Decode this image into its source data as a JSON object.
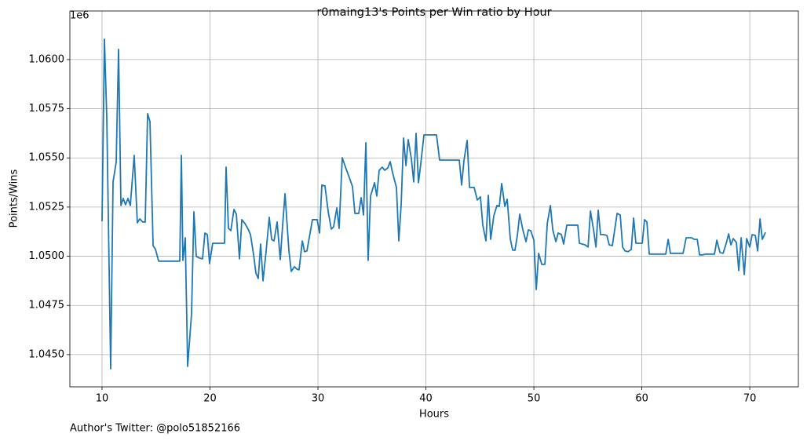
{
  "chart_data": {
    "type": "line",
    "title": "r0maing13's Points per Win ratio by Hour",
    "x_label": "Hours",
    "y_label": "Points/Wins",
    "y_offset_label": "1e6",
    "footer": "Author's Twitter: @polo51852166",
    "color": "#1f77b4",
    "grid": true,
    "xlim": [
      7.02,
      74.5
    ],
    "ylim": [
      1.04336,
      1.06247
    ],
    "xticks": [
      10,
      20,
      30,
      40,
      50,
      60,
      70
    ],
    "yticks": [
      {
        "value": 1.045,
        "label": "1.0450"
      },
      {
        "value": 1.0475,
        "label": "1.0475"
      },
      {
        "value": 1.05,
        "label": "1.0500"
      },
      {
        "value": 1.0525,
        "label": "1.0525"
      },
      {
        "value": 1.055,
        "label": "1.0550"
      },
      {
        "value": 1.0575,
        "label": "1.0575"
      },
      {
        "value": 1.06,
        "label": "1.0600"
      }
    ],
    "x": [
      10.0,
      10.22,
      10.44,
      10.8,
      11.02,
      11.31,
      11.53,
      11.75,
      11.96,
      12.18,
      12.4,
      12.62,
      12.98,
      13.27,
      13.49,
      13.78,
      14.0,
      14.22,
      14.44,
      14.73,
      14.95,
      15.24,
      15.82,
      17.2,
      17.35,
      17.49,
      17.71,
      17.93,
      18.29,
      18.51,
      18.73,
      19.02,
      19.31,
      19.53,
      19.75,
      19.96,
      20.25,
      21.35,
      21.49,
      21.71,
      21.93,
      22.22,
      22.44,
      22.73,
      22.95,
      23.24,
      23.53,
      23.75,
      24.04,
      24.25,
      24.47,
      24.69,
      24.91,
      25.2,
      25.49,
      25.71,
      25.93,
      26.22,
      26.51,
      26.73,
      26.95,
      27.31,
      27.53,
      27.82,
      28.04,
      28.25,
      28.55,
      28.76,
      28.98,
      29.27,
      29.49,
      29.93,
      30.15,
      30.36,
      30.65,
      30.95,
      31.24,
      31.45,
      31.75,
      31.96,
      32.25,
      32.55,
      32.84,
      33.2,
      33.42,
      33.78,
      34.0,
      34.22,
      34.44,
      34.65,
      34.87,
      35.24,
      35.45,
      35.67,
      35.96,
      36.18,
      36.47,
      36.69,
      36.91,
      37.27,
      37.49,
      37.71,
      37.93,
      38.15,
      38.36,
      38.65,
      38.87,
      39.09,
      39.31,
      39.53,
      39.82,
      40.98,
      41.27,
      43.09,
      43.31,
      43.53,
      43.82,
      44.04,
      44.47,
      44.76,
      45.05,
      45.27,
      45.56,
      45.78,
      46.0,
      46.29,
      46.58,
      46.8,
      47.02,
      47.31,
      47.53,
      47.82,
      48.04,
      48.25,
      48.47,
      48.69,
      48.98,
      49.27,
      49.49,
      49.71,
      50.0,
      50.22,
      50.44,
      50.73,
      51.02,
      51.24,
      51.53,
      51.75,
      52.04,
      52.25,
      52.55,
      52.76,
      53.05,
      54.07,
      54.22,
      54.73,
      55.02,
      55.24,
      55.53,
      55.75,
      55.96,
      56.18,
      56.47,
      56.76,
      56.98,
      57.27,
      57.71,
      58.0,
      58.22,
      58.44,
      58.73,
      59.02,
      59.24,
      59.45,
      60.04,
      60.25,
      60.47,
      60.69,
      61.2,
      62.22,
      62.44,
      62.65,
      63.82,
      64.11,
      64.62,
      64.84,
      65.13,
      65.35,
      65.64,
      65.93,
      66.73,
      66.95,
      67.24,
      67.53,
      67.82,
      68.04,
      68.25,
      68.47,
      68.76,
      68.98,
      69.2,
      69.49,
      69.71,
      70.0,
      70.22,
      70.51,
      70.73,
      70.95,
      71.16,
      71.45
    ],
    "values": [
      1.05178,
      1.06104,
      1.05705,
      1.04428,
      1.05378,
      1.05477,
      1.06052,
      1.05258,
      1.05294,
      1.05262,
      1.05294,
      1.05258,
      1.05513,
      1.0517,
      1.0519,
      1.05174,
      1.05174,
      1.05725,
      1.05685,
      1.05054,
      1.05035,
      1.04975,
      1.04975,
      1.04975,
      1.05513,
      1.04979,
      1.05094,
      1.0444,
      1.04707,
      1.05226,
      1.04999,
      1.04991,
      1.04987,
      1.05118,
      1.0511,
      1.04963,
      1.05066,
      1.05066,
      1.05453,
      1.05142,
      1.0513,
      1.05238,
      1.05214,
      1.04987,
      1.05186,
      1.05166,
      1.05138,
      1.0511,
      1.05007,
      1.04915,
      1.04887,
      1.05062,
      1.04875,
      1.05027,
      1.05198,
      1.05086,
      1.05078,
      1.05174,
      1.04983,
      1.05158,
      1.05318,
      1.05027,
      1.04923,
      1.04947,
      1.04935,
      1.04931,
      1.05078,
      1.05023,
      1.05027,
      1.05118,
      1.05186,
      1.05186,
      1.05118,
      1.05362,
      1.05358,
      1.05226,
      1.05138,
      1.0515,
      1.05246,
      1.05142,
      1.05501,
      1.05453,
      1.0541,
      1.05354,
      1.05218,
      1.05218,
      1.05298,
      1.0521,
      1.05577,
      1.04979,
      1.05306,
      1.05374,
      1.05306,
      1.05437,
      1.05453,
      1.05437,
      1.05449,
      1.05481,
      1.05425,
      1.0535,
      1.05078,
      1.05266,
      1.05601,
      1.05461,
      1.05593,
      1.05497,
      1.05378,
      1.05625,
      1.05374,
      1.05473,
      1.05617,
      1.05617,
      1.05489,
      1.05489,
      1.05362,
      1.05489,
      1.05589,
      1.0535,
      1.0535,
      1.05286,
      1.05302,
      1.05158,
      1.05078,
      1.0531,
      1.05086,
      1.05206,
      1.05258,
      1.05254,
      1.0537,
      1.05254,
      1.0529,
      1.05086,
      1.05031,
      1.05031,
      1.05106,
      1.05214,
      1.05134,
      1.05074,
      1.05134,
      1.0513,
      1.05082,
      1.04831,
      1.05015,
      1.04959,
      1.04959,
      1.05166,
      1.05258,
      1.05134,
      1.05074,
      1.05118,
      1.0511,
      1.05062,
      1.05158,
      1.05158,
      1.05066,
      1.05058,
      1.05047,
      1.0523,
      1.05134,
      1.05047,
      1.05234,
      1.0511,
      1.0511,
      1.05106,
      1.05058,
      1.05054,
      1.05218,
      1.0521,
      1.05047,
      1.05027,
      1.05023,
      1.05035,
      1.05194,
      1.05066,
      1.05066,
      1.05186,
      1.05174,
      1.05011,
      1.05011,
      1.05011,
      1.05086,
      1.05015,
      1.05015,
      1.05094,
      1.05094,
      1.05086,
      1.05086,
      1.05007,
      1.05007,
      1.05011,
      1.05011,
      1.05082,
      1.05019,
      1.05015,
      1.05066,
      1.05114,
      1.05058,
      1.0509,
      1.0507,
      1.04927,
      1.05094,
      1.04907,
      1.0509,
      1.05047,
      1.0511,
      1.05106,
      1.05027,
      1.0519,
      1.05086,
      1.05122
    ]
  }
}
